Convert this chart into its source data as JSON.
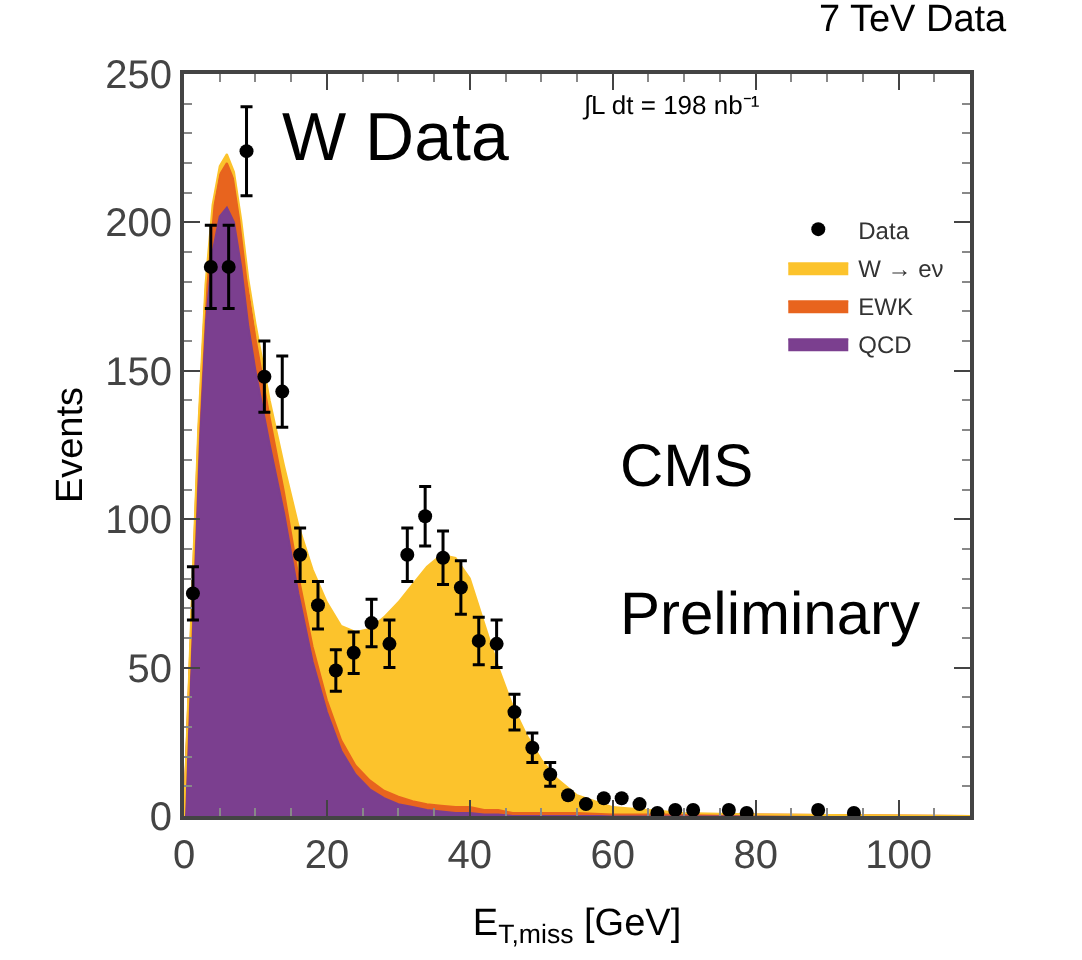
{
  "chart_data": {
    "type": "area",
    "stacked": true,
    "title": "7 TeV Data",
    "xlabel": "E$_{T,miss}$ [GeV]",
    "ylabel": "Events",
    "annotations": [
      "W Data",
      "∫L dt = 198 nb⁻¹",
      "CMS",
      "Preliminary"
    ],
    "xlim": [
      0,
      110
    ],
    "xticks": [
      0,
      20,
      40,
      60,
      80,
      100
    ],
    "ylim": [
      0,
      250
    ],
    "yticks": [
      0,
      50,
      100,
      150,
      200,
      250
    ],
    "legend": "top right",
    "series": [
      {
        "name": "QCD",
        "color": "#7b3f8f",
        "x": [
          0,
          1,
          2,
          3,
          4,
          5,
          6,
          7,
          8,
          9,
          10,
          12,
          14,
          16,
          18,
          20,
          22,
          24,
          26,
          28,
          30,
          32,
          34,
          36,
          38,
          40,
          42,
          44,
          46,
          48,
          50,
          52,
          55,
          60,
          70,
          80,
          110
        ],
        "values": [
          0,
          60,
          120,
          165,
          190,
          202,
          205,
          200,
          185,
          165,
          150,
          125,
          102,
          75,
          52,
          35,
          22,
          14,
          9,
          6,
          4,
          3,
          2,
          1.5,
          1,
          1,
          0.5,
          0.5,
          0,
          0,
          0,
          0,
          0,
          0,
          0,
          0,
          0
        ]
      },
      {
        "name": "EWK",
        "color": "#e8641e",
        "x": [
          0,
          1,
          2,
          3,
          4,
          5,
          6,
          7,
          8,
          9,
          10,
          12,
          14,
          16,
          18,
          20,
          22,
          24,
          26,
          28,
          30,
          32,
          34,
          36,
          38,
          40,
          42,
          44,
          46,
          48,
          50,
          52,
          55,
          60,
          70,
          80,
          110
        ],
        "values": [
          0,
          4,
          8,
          11,
          13,
          14,
          15,
          14,
          13,
          12,
          11,
          9,
          7,
          6,
          5,
          4,
          3.5,
          3,
          3,
          2.5,
          2.5,
          2,
          2,
          2,
          2,
          2,
          1.5,
          1.5,
          1,
          1,
          1,
          1,
          1,
          0.5,
          0.5,
          0.5,
          0
        ]
      },
      {
        "name": "W → eν",
        "color": "#fcc32c",
        "x": [
          0,
          1,
          2,
          3,
          4,
          5,
          6,
          7,
          8,
          9,
          10,
          12,
          14,
          16,
          18,
          20,
          22,
          24,
          26,
          28,
          30,
          32,
          34,
          36,
          38,
          40,
          42,
          44,
          46,
          48,
          50,
          52,
          55,
          60,
          70,
          80,
          110
        ],
        "values": [
          0,
          3,
          3,
          3,
          3,
          3,
          3,
          3,
          3,
          4,
          5,
          6,
          9,
          17,
          26,
          33,
          38.5,
          45,
          51,
          58.5,
          65.5,
          73,
          80,
          84.5,
          84,
          77,
          63,
          48,
          36,
          26,
          18,
          12,
          6,
          2.5,
          0.5,
          0,
          0
        ]
      },
      {
        "name": "Data",
        "type": "scatter",
        "color": "#000000",
        "marker": "circle",
        "x": [
          1.25,
          3.75,
          6.25,
          8.75,
          11.25,
          13.75,
          16.25,
          18.75,
          21.25,
          23.75,
          26.25,
          28.75,
          31.25,
          33.75,
          36.25,
          38.75,
          41.25,
          43.75,
          46.25,
          48.75,
          51.25,
          53.75,
          56.25,
          58.75,
          61.25,
          63.75,
          66.25,
          68.75,
          71.25,
          76.25,
          78.75,
          88.75,
          93.75
        ],
        "values": [
          75,
          185,
          185,
          224,
          148,
          143,
          88,
          71,
          49,
          55,
          65,
          58,
          88,
          101,
          87,
          77,
          59,
          58,
          35,
          23,
          14,
          7,
          4,
          6,
          6,
          4,
          1,
          2,
          2,
          2,
          1,
          2,
          1
        ],
        "errors": [
          9,
          14,
          14,
          15,
          12,
          12,
          9,
          8,
          7,
          7,
          8,
          8,
          9,
          10,
          9,
          9,
          8,
          8,
          6,
          5,
          4,
          null,
          null,
          null,
          null,
          null,
          null,
          null,
          null,
          null,
          null,
          null,
          null
        ]
      }
    ]
  }
}
